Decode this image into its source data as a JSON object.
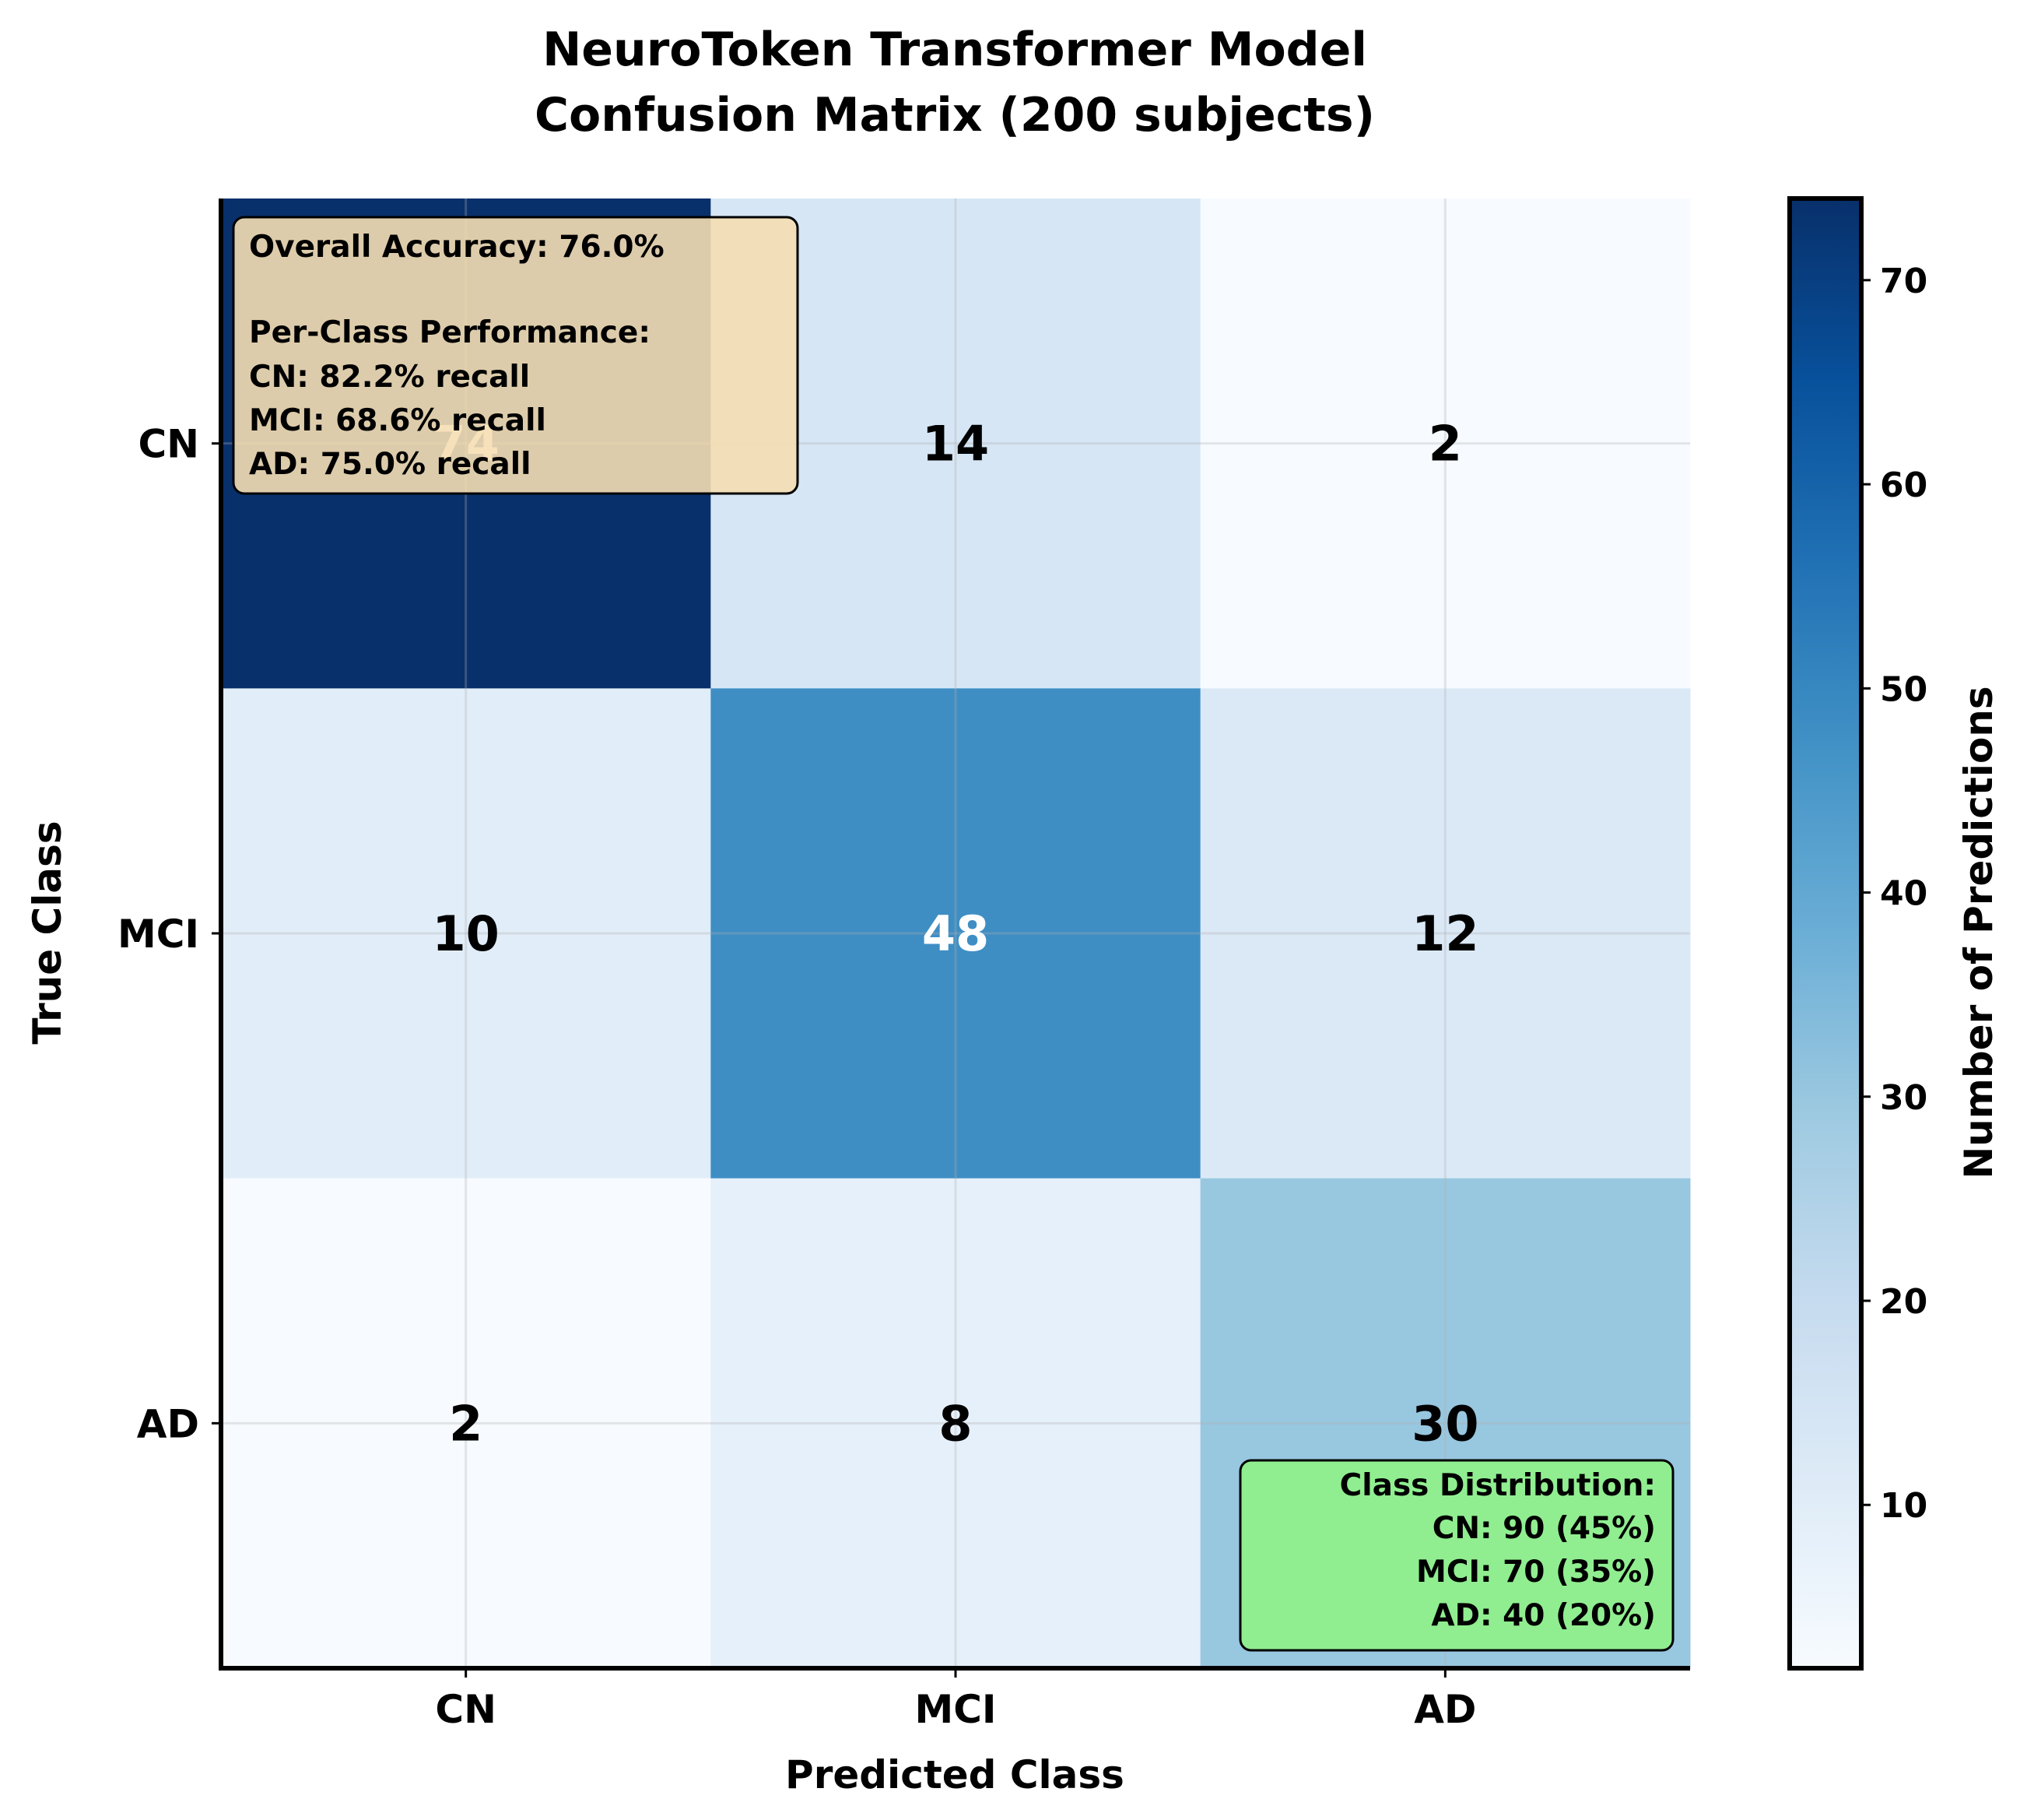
{
  "chart_data": {
    "type": "heatmap",
    "title_lines": [
      "NeuroToken Transformer Model",
      "Confusion Matrix (200 subjects)"
    ],
    "xlabel": "Predicted Class",
    "ylabel": "True Class",
    "x_categories": [
      "CN",
      "MCI",
      "AD"
    ],
    "y_categories": [
      "CN",
      "MCI",
      "AD"
    ],
    "values": [
      [
        74,
        14,
        2
      ],
      [
        10,
        48,
        12
      ],
      [
        2,
        8,
        30
      ]
    ],
    "colorbar": {
      "label": "Number of Predictions",
      "range": [
        2,
        74
      ],
      "ticks": [
        10,
        20,
        30,
        40,
        50,
        60,
        70
      ],
      "colormap": "Blues"
    },
    "grid": true,
    "summary_box": {
      "position": "top-left",
      "lines": [
        "Overall Accuracy: 76.0%",
        "",
        "Per-Class Performance:",
        "CN: 82.2% recall",
        "MCI: 68.6% recall",
        "AD: 75.0% recall"
      ],
      "color": "#f5deb3"
    },
    "distribution_box": {
      "position": "bottom-right",
      "lines": [
        "Class Distribution:",
        "CN: 90 (45%)",
        "MCI: 70 (35%)",
        "AD: 40 (20%)"
      ],
      "color": "#90ee90"
    }
  }
}
